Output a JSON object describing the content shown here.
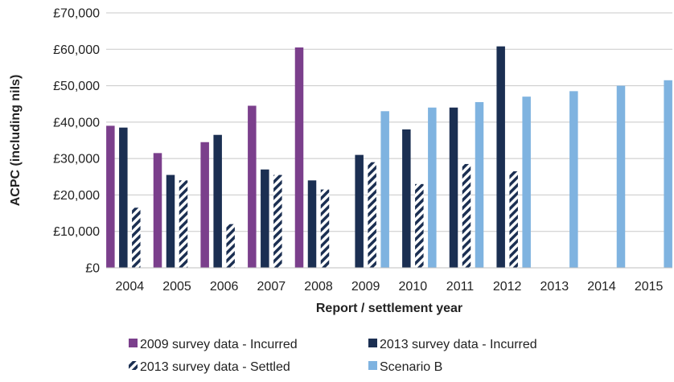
{
  "chart_data": {
    "type": "bar",
    "categories": [
      "2004",
      "2005",
      "2006",
      "2007",
      "2008",
      "2009",
      "2010",
      "2011",
      "2012",
      "2013",
      "2014",
      "2015"
    ],
    "xlabel": "Report / settlement year",
    "ylabel": "ACPC (including nils)",
    "ylim": [
      0,
      70000
    ],
    "yticks": [
      0,
      10000,
      20000,
      30000,
      40000,
      50000,
      60000,
      70000
    ],
    "ytick_labels": [
      "£0",
      "£10,000",
      "£20,000",
      "£30,000",
      "£40,000",
      "£50,000",
      "£60,000",
      "£70,000"
    ],
    "grid": "horizontal",
    "legend_position": "bottom",
    "series": [
      {
        "name": "2009 survey data - Incurred",
        "color": "#7b3f8c",
        "pattern": "solid",
        "values": [
          39000,
          31500,
          34500,
          44500,
          60500,
          null,
          null,
          null,
          null,
          null,
          null,
          null
        ]
      },
      {
        "name": "2013 survey data - Incurred",
        "color": "#1b2f52",
        "pattern": "solid",
        "values": [
          38500,
          25500,
          36500,
          27000,
          24000,
          31000,
          38000,
          44000,
          60800,
          null,
          null,
          null
        ]
      },
      {
        "name": "2013 survey data - Settled",
        "color": "#1b2f52",
        "pattern": "hatched",
        "values": [
          16500,
          24000,
          12000,
          25500,
          21500,
          29000,
          23000,
          28500,
          26500,
          null,
          null,
          null
        ]
      },
      {
        "name": "Scenario B",
        "color": "#7fb3e0",
        "pattern": "solid",
        "values": [
          null,
          null,
          null,
          null,
          null,
          43000,
          44000,
          45500,
          47000,
          48500,
          50000,
          51500
        ]
      }
    ]
  }
}
